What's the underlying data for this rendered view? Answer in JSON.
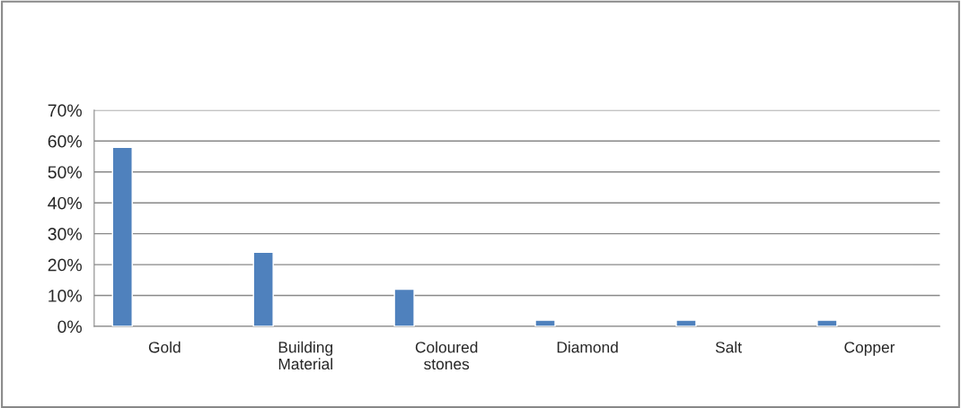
{
  "chart_data": {
    "type": "bar",
    "categories": [
      "Gold",
      "Building\nMaterial",
      "Coloured\nstones",
      "Diamond",
      "Salt",
      "Copper"
    ],
    "values": [
      58,
      24,
      12,
      2,
      2,
      2
    ],
    "color": "#4f81bd",
    "ylim": [
      0,
      70
    ],
    "yticks": [
      {
        "value": 0,
        "label": "0%"
      },
      {
        "value": 10,
        "label": "10%"
      },
      {
        "value": 20,
        "label": "20%"
      },
      {
        "value": 30,
        "label": "30%"
      },
      {
        "value": 40,
        "label": "40%"
      },
      {
        "value": 50,
        "label": "50%"
      },
      {
        "value": 60,
        "label": "60%"
      },
      {
        "value": 70,
        "label": "70%"
      }
    ],
    "grid": "y"
  }
}
